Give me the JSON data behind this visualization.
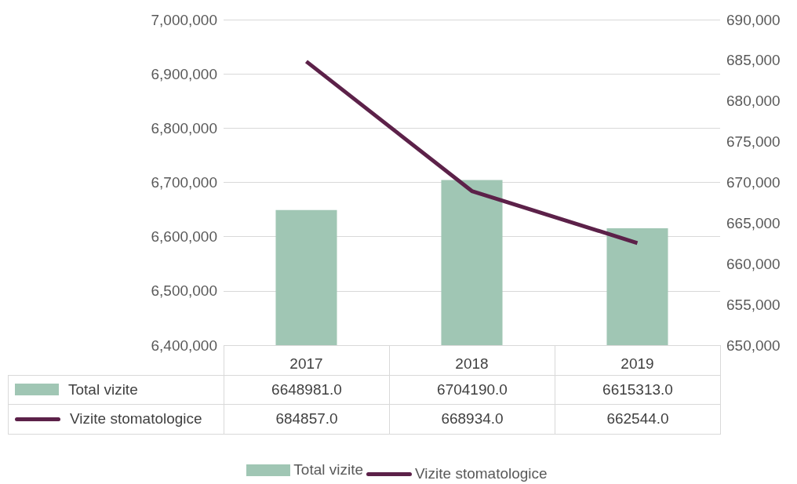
{
  "chart_data": {
    "type": "bar",
    "categories": [
      "2017",
      "2018",
      "2019"
    ],
    "series": [
      {
        "name": "Total vizite",
        "color": "#a0c6b4",
        "values": [
          6648981,
          6704190,
          6615313
        ],
        "value_labels": [
          "6648981.0",
          "6704190.0",
          "6615313.0"
        ]
      },
      {
        "name": "Vizite stomatologice",
        "type": "line",
        "axis": "y2",
        "color": "#5c2149",
        "values": [
          684857,
          668934,
          662544
        ],
        "value_labels": [
          "684857.0",
          "668934.0",
          "662544.0"
        ]
      }
    ],
    "ylim": [
      6400000,
      7000000
    ],
    "yticks": [
      {
        "value": 6400000,
        "label": "6,400,000"
      },
      {
        "value": 6500000,
        "label": "6,500,000"
      },
      {
        "value": 6600000,
        "label": "6,600,000"
      },
      {
        "value": 6700000,
        "label": "6,700,000"
      },
      {
        "value": 6800000,
        "label": "6,800,000"
      },
      {
        "value": 6900000,
        "label": "6,900,000"
      },
      {
        "value": 7000000,
        "label": "7,000,000"
      }
    ],
    "y2lim": [
      650000,
      690000
    ],
    "y2ticks": [
      {
        "value": 650000,
        "label": "650,000"
      },
      {
        "value": 655000,
        "label": "655,000"
      },
      {
        "value": 660000,
        "label": "660,000"
      },
      {
        "value": 665000,
        "label": "665,000"
      },
      {
        "value": 670000,
        "label": "670,000"
      },
      {
        "value": 675000,
        "label": "675,000"
      },
      {
        "value": 680000,
        "label": "680,000"
      },
      {
        "value": 685000,
        "label": "685,000"
      },
      {
        "value": 690000,
        "label": "690,000"
      }
    ],
    "grid": "y",
    "legend": "bottom",
    "marker": "none",
    "line_style": "solid"
  }
}
